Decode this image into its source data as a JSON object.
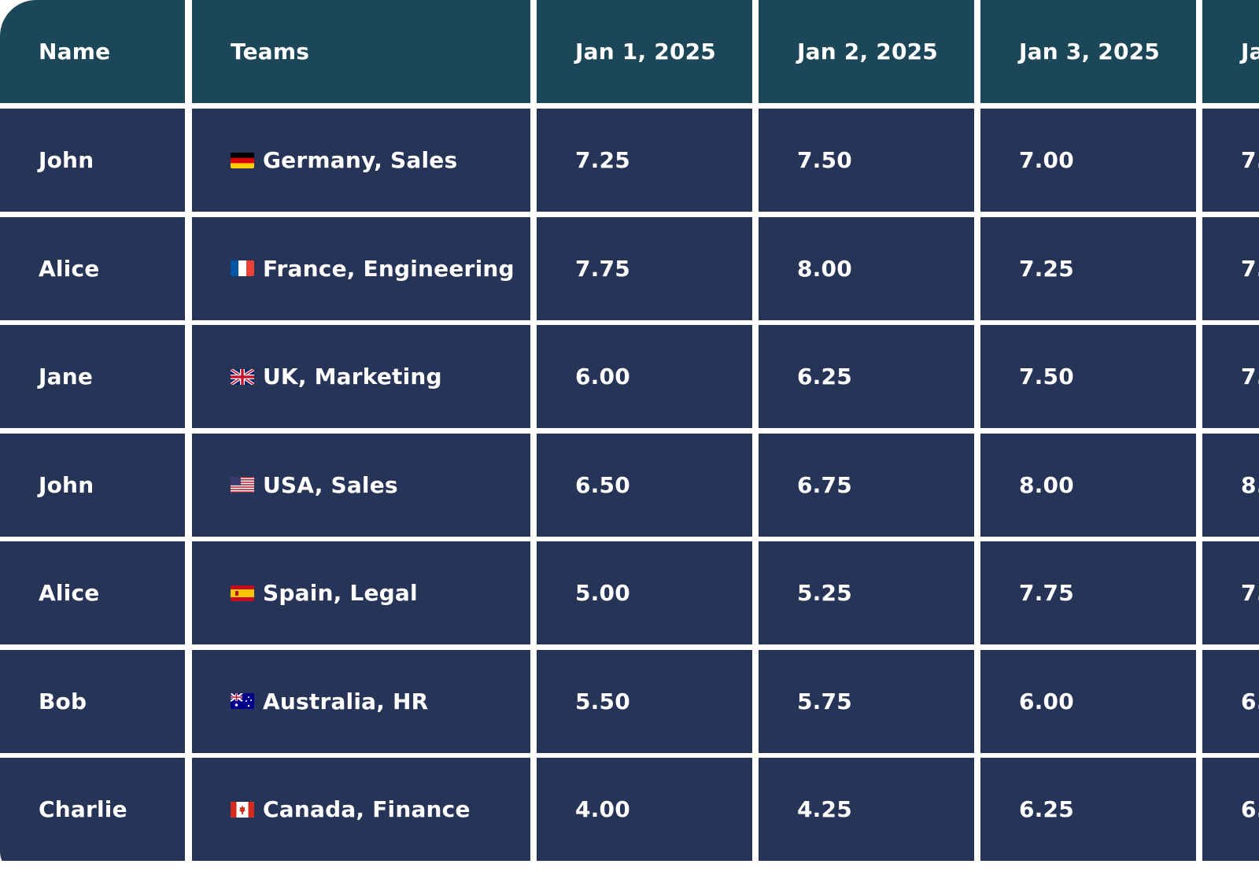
{
  "table": {
    "headers": [
      "Name",
      "Teams",
      "Jan 1, 2025",
      "Jan 2, 2025",
      "Jan 3, 2025",
      "Ja"
    ],
    "rows": [
      {
        "name": "John",
        "flag": "flag-germany-icon",
        "team": "Germany, Sales",
        "d1": "7.25",
        "d2": "7.50",
        "d3": "7.00",
        "d4": "7."
      },
      {
        "name": "Alice",
        "flag": "flag-france-icon",
        "team": "France, Engineering",
        "d1": "7.75",
        "d2": "8.00",
        "d3": "7.25",
        "d4": "7."
      },
      {
        "name": "Jane",
        "flag": "flag-uk-icon",
        "team": "UK, Marketing",
        "d1": "6.00",
        "d2": "6.25",
        "d3": "7.50",
        "d4": "7."
      },
      {
        "name": "John",
        "flag": "flag-usa-icon",
        "team": "USA, Sales",
        "d1": "6.50",
        "d2": "6.75",
        "d3": "8.00",
        "d4": "8."
      },
      {
        "name": "Alice",
        "flag": "flag-spain-icon",
        "team": "Spain, Legal",
        "d1": "5.00",
        "d2": "5.25",
        "d3": "7.75",
        "d4": "7."
      },
      {
        "name": "Bob",
        "flag": "flag-australia-icon",
        "team": "Australia, HR",
        "d1": "5.50",
        "d2": "5.75",
        "d3": "6.00",
        "d4": "6."
      },
      {
        "name": "Charlie",
        "flag": "flag-canada-icon",
        "team": "Canada, Finance",
        "d1": "4.00",
        "d2": "4.25",
        "d3": "6.25",
        "d4": "6."
      }
    ]
  },
  "colors": {
    "header_bg": "#1b4759",
    "cell_bg": "#263457",
    "text": "#ffffff",
    "gap": "#ffffff"
  }
}
